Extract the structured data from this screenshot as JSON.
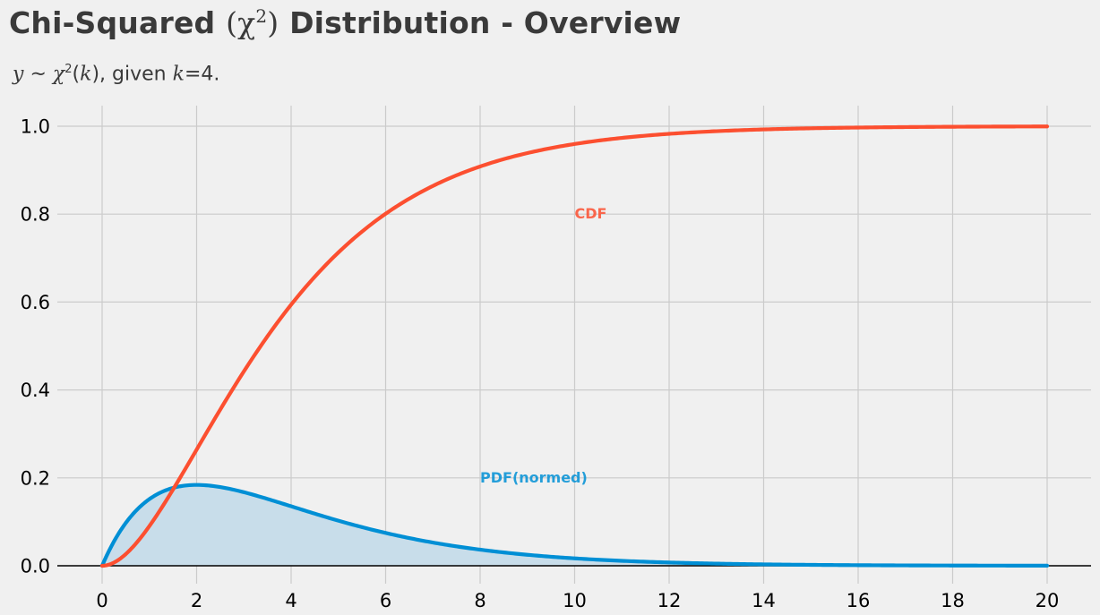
{
  "header": {
    "title_prefix": "Chi-Squared",
    "title_symbol": "χ",
    "title_sup": "2",
    "title_suffix": "Distribution - Overview",
    "subtitle_var": "y",
    "subtitle_tilde": "~",
    "subtitle_chi": "χ",
    "subtitle_sup": "2",
    "subtitle_arg": "k",
    "subtitle_given": ", given",
    "subtitle_k": "k",
    "subtitle_value": "=4."
  },
  "chart_data": {
    "type": "line",
    "title": "Chi-Squared (χ²) Distribution - Overview",
    "subtitle": "y ~ χ²(k), given k=4.",
    "dof": 4,
    "xlim": [
      0,
      20
    ],
    "ylim": [
      0,
      1
    ],
    "x_ticks": [
      0,
      2,
      4,
      6,
      8,
      10,
      12,
      14,
      16,
      18,
      20
    ],
    "x_tick_labels": [
      "0",
      "2",
      "4",
      "6",
      "8",
      "10",
      "12",
      "14",
      "16",
      "18",
      "20"
    ],
    "y_ticks": [
      0.0,
      0.2,
      0.4,
      0.6,
      0.8,
      1.0
    ],
    "y_tick_labels": [
      "0.0",
      "0.2",
      "0.4",
      "0.6",
      "0.8",
      "1.0"
    ],
    "grid": true,
    "colors": {
      "cdf": "#fc4f30",
      "pdf": "#008fd5",
      "pdf_fill": "#c8ddea",
      "grid": "#cbcbcb",
      "axis": "#000000",
      "tick_text": "#000000"
    },
    "x": [
      0,
      0.5,
      1,
      1.5,
      2,
      2.5,
      3,
      3.5,
      4,
      5,
      6,
      7,
      8,
      9,
      10,
      11,
      12,
      13,
      14,
      15,
      16,
      17,
      18,
      19,
      20
    ],
    "series": [
      {
        "name": "CDF",
        "label": "CDF",
        "label_at": [
          10,
          0.8
        ],
        "color": "#fc4f30",
        "values": [
          0.0,
          0.0265,
          0.0902,
          0.1734,
          0.2642,
          0.3554,
          0.4422,
          0.5221,
          0.594,
          0.7127,
          0.8009,
          0.8641,
          0.9084,
          0.9389,
          0.9596,
          0.9734,
          0.9826,
          0.9887,
          0.9927,
          0.9953,
          0.997,
          0.9981,
          0.9988,
          0.9992,
          0.9995
        ]
      },
      {
        "name": "PDF(normed)",
        "label": "PDF(normed)",
        "label_at": [
          8,
          0.2
        ],
        "color": "#008fd5",
        "filled": true,
        "values": [
          0.0,
          0.0974,
          0.1516,
          0.1771,
          0.1839,
          0.1791,
          0.1673,
          0.1515,
          0.1353,
          0.1026,
          0.0747,
          0.0528,
          0.0366,
          0.025,
          0.0168,
          0.0112,
          0.0074,
          0.0049,
          0.0032,
          0.0021,
          0.0013,
          0.0009,
          0.0006,
          0.0004,
          0.0002
        ]
      }
    ]
  }
}
